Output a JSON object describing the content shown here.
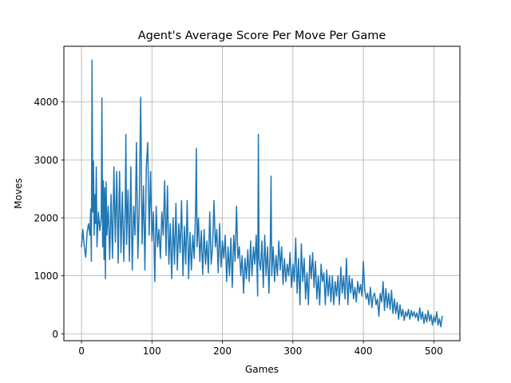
{
  "chart_data": {
    "type": "line",
    "title": "Agent's Average Score Per Move Per Game",
    "xlabel": "Games",
    "ylabel": "Moves",
    "xlim": [
      -25,
      537
    ],
    "ylim": [
      -120,
      4960
    ],
    "xticks": [
      0,
      100,
      200,
      300,
      400,
      500
    ],
    "yticks": [
      0,
      1000,
      2000,
      3000,
      4000
    ],
    "grid": true,
    "series": [
      {
        "color": "#1f77b4",
        "points": [
          [
            0,
            1500
          ],
          [
            2,
            1800
          ],
          [
            4,
            1500
          ],
          [
            6,
            1320
          ],
          [
            8,
            1760
          ],
          [
            10,
            1900
          ],
          [
            12,
            1700
          ],
          [
            13,
            2150
          ],
          [
            14,
            1250
          ],
          [
            15,
            4720
          ],
          [
            16,
            2100
          ],
          [
            17,
            2980
          ],
          [
            18,
            1700
          ],
          [
            19,
            2400
          ],
          [
            20,
            1900
          ],
          [
            21,
            2880
          ],
          [
            22,
            1500
          ],
          [
            24,
            2100
          ],
          [
            26,
            1780
          ],
          [
            28,
            2000
          ],
          [
            29,
            4070
          ],
          [
            30,
            1500
          ],
          [
            31,
            2640
          ],
          [
            32,
            1280
          ],
          [
            33,
            2520
          ],
          [
            34,
            950
          ],
          [
            35,
            2620
          ],
          [
            36,
            1700
          ],
          [
            38,
            2200
          ],
          [
            40,
            1280
          ],
          [
            42,
            2400
          ],
          [
            44,
            1300
          ],
          [
            46,
            2880
          ],
          [
            48,
            1580
          ],
          [
            50,
            2800
          ],
          [
            52,
            1220
          ],
          [
            54,
            2800
          ],
          [
            56,
            1400
          ],
          [
            58,
            2450
          ],
          [
            60,
            1250
          ],
          [
            62,
            2200
          ],
          [
            63,
            3440
          ],
          [
            64,
            1540
          ],
          [
            66,
            2480
          ],
          [
            68,
            1250
          ],
          [
            70,
            2880
          ],
          [
            72,
            1100
          ],
          [
            74,
            2200
          ],
          [
            76,
            1700
          ],
          [
            78,
            3300
          ],
          [
            80,
            1300
          ],
          [
            82,
            2200
          ],
          [
            84,
            4080
          ],
          [
            86,
            1550
          ],
          [
            88,
            2550
          ],
          [
            90,
            1100
          ],
          [
            92,
            2880
          ],
          [
            94,
            3300
          ],
          [
            96,
            1700
          ],
          [
            98,
            2800
          ],
          [
            100,
            1600
          ],
          [
            102,
            2100
          ],
          [
            104,
            900
          ],
          [
            106,
            2200
          ],
          [
            108,
            1500
          ],
          [
            110,
            1800
          ],
          [
            112,
            1300
          ],
          [
            114,
            2100
          ],
          [
            116,
            1700
          ],
          [
            118,
            2640
          ],
          [
            120,
            1350
          ],
          [
            122,
            2550
          ],
          [
            124,
            1200
          ],
          [
            126,
            1900
          ],
          [
            128,
            950
          ],
          [
            130,
            2000
          ],
          [
            132,
            1200
          ],
          [
            134,
            2250
          ],
          [
            136,
            1100
          ],
          [
            138,
            1900
          ],
          [
            140,
            1400
          ],
          [
            142,
            2300
          ],
          [
            144,
            1000
          ],
          [
            146,
            1850
          ],
          [
            148,
            1200
          ],
          [
            150,
            2300
          ],
          [
            152,
            950
          ],
          [
            154,
            1750
          ],
          [
            156,
            1100
          ],
          [
            158,
            1700
          ],
          [
            160,
            1300
          ],
          [
            162,
            2200
          ],
          [
            163,
            3200
          ],
          [
            164,
            1500
          ],
          [
            166,
            2000
          ],
          [
            168,
            1250
          ],
          [
            170,
            1780
          ],
          [
            172,
            1020
          ],
          [
            174,
            1800
          ],
          [
            176,
            1200
          ],
          [
            178,
            1600
          ],
          [
            180,
            1050
          ],
          [
            182,
            2100
          ],
          [
            184,
            1200
          ],
          [
            186,
            1500
          ],
          [
            188,
            2300
          ],
          [
            190,
            1500
          ],
          [
            192,
            1800
          ],
          [
            194,
            1050
          ],
          [
            196,
            1900
          ],
          [
            198,
            1150
          ],
          [
            200,
            1600
          ],
          [
            202,
            1300
          ],
          [
            204,
            1700
          ],
          [
            206,
            900
          ],
          [
            208,
            1500
          ],
          [
            210,
            1000
          ],
          [
            212,
            1650
          ],
          [
            214,
            800
          ],
          [
            216,
            1700
          ],
          [
            218,
            1250
          ],
          [
            220,
            2200
          ],
          [
            222,
            1300
          ],
          [
            224,
            1500
          ],
          [
            226,
            1000
          ],
          [
            228,
            1350
          ],
          [
            230,
            700
          ],
          [
            232,
            1300
          ],
          [
            234,
            950
          ],
          [
            236,
            1450
          ],
          [
            238,
            900
          ],
          [
            240,
            1600
          ],
          [
            242,
            1000
          ],
          [
            244,
            1500
          ],
          [
            246,
            1200
          ],
          [
            248,
            1700
          ],
          [
            250,
            650
          ],
          [
            251,
            3440
          ],
          [
            252,
            1300
          ],
          [
            254,
            1100
          ],
          [
            256,
            1600
          ],
          [
            258,
            800
          ],
          [
            260,
            1700
          ],
          [
            262,
            1000
          ],
          [
            264,
            1500
          ],
          [
            266,
            700
          ],
          [
            268,
            1600
          ],
          [
            269,
            2720
          ],
          [
            270,
            1000
          ],
          [
            272,
            1500
          ],
          [
            274,
            900
          ],
          [
            276,
            1350
          ],
          [
            278,
            1000
          ],
          [
            280,
            1600
          ],
          [
            282,
            1100
          ],
          [
            284,
            1500
          ],
          [
            286,
            850
          ],
          [
            288,
            1300
          ],
          [
            290,
            900
          ],
          [
            292,
            1200
          ],
          [
            294,
            1000
          ],
          [
            296,
            1400
          ],
          [
            298,
            800
          ],
          [
            300,
            1200
          ],
          [
            302,
            900
          ],
          [
            304,
            1650
          ],
          [
            306,
            700
          ],
          [
            308,
            1300
          ],
          [
            310,
            500
          ],
          [
            312,
            1550
          ],
          [
            314,
            900
          ],
          [
            316,
            1300
          ],
          [
            318,
            600
          ],
          [
            320,
            1050
          ],
          [
            322,
            500
          ],
          [
            324,
            1350
          ],
          [
            326,
            950
          ],
          [
            328,
            1400
          ],
          [
            330,
            800
          ],
          [
            332,
            1250
          ],
          [
            334,
            600
          ],
          [
            336,
            1000
          ],
          [
            338,
            500
          ],
          [
            340,
            1200
          ],
          [
            342,
            900
          ],
          [
            344,
            1050
          ],
          [
            346,
            500
          ],
          [
            348,
            1100
          ],
          [
            350,
            650
          ],
          [
            352,
            1000
          ],
          [
            354,
            550
          ],
          [
            356,
            1000
          ],
          [
            358,
            500
          ],
          [
            360,
            900
          ],
          [
            362,
            650
          ],
          [
            364,
            1000
          ],
          [
            366,
            500
          ],
          [
            368,
            1150
          ],
          [
            370,
            700
          ],
          [
            372,
            1000
          ],
          [
            374,
            600
          ],
          [
            376,
            1300
          ],
          [
            378,
            500
          ],
          [
            380,
            1000
          ],
          [
            382,
            700
          ],
          [
            384,
            950
          ],
          [
            386,
            600
          ],
          [
            388,
            800
          ],
          [
            390,
            550
          ],
          [
            392,
            900
          ],
          [
            394,
            700
          ],
          [
            396,
            850
          ],
          [
            398,
            650
          ],
          [
            400,
            1250
          ],
          [
            402,
            750
          ],
          [
            404,
            600
          ],
          [
            406,
            700
          ],
          [
            408,
            500
          ],
          [
            410,
            800
          ],
          [
            412,
            450
          ],
          [
            414,
            650
          ],
          [
            416,
            700
          ],
          [
            418,
            500
          ],
          [
            420,
            600
          ],
          [
            422,
            300
          ],
          [
            424,
            700
          ],
          [
            426,
            550
          ],
          [
            428,
            900
          ],
          [
            430,
            400
          ],
          [
            432,
            780
          ],
          [
            434,
            450
          ],
          [
            436,
            700
          ],
          [
            438,
            420
          ],
          [
            440,
            750
          ],
          [
            442,
            350
          ],
          [
            444,
            600
          ],
          [
            446,
            350
          ],
          [
            448,
            540
          ],
          [
            450,
            250
          ],
          [
            452,
            500
          ],
          [
            454,
            300
          ],
          [
            456,
            420
          ],
          [
            458,
            230
          ],
          [
            460,
            380
          ],
          [
            462,
            300
          ],
          [
            464,
            420
          ],
          [
            466,
            250
          ],
          [
            468,
            400
          ],
          [
            470,
            300
          ],
          [
            472,
            380
          ],
          [
            474,
            280
          ],
          [
            476,
            360
          ],
          [
            478,
            220
          ],
          [
            480,
            450
          ],
          [
            482,
            250
          ],
          [
            484,
            380
          ],
          [
            486,
            180
          ],
          [
            488,
            340
          ],
          [
            490,
            200
          ],
          [
            492,
            400
          ],
          [
            494,
            220
          ],
          [
            496,
            330
          ],
          [
            498,
            150
          ],
          [
            500,
            300
          ],
          [
            502,
            200
          ],
          [
            504,
            380
          ],
          [
            506,
            150
          ],
          [
            508,
            260
          ],
          [
            510,
            120
          ],
          [
            512,
            300
          ]
        ]
      }
    ]
  }
}
